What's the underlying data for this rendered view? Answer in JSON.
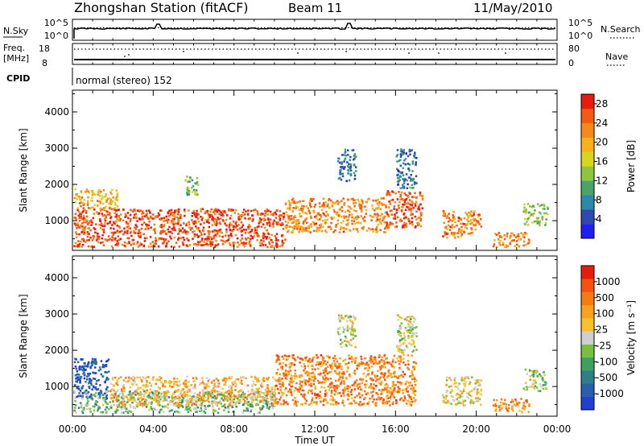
{
  "header": {
    "station": "Zhongshan Station (fitACF)",
    "beam": "Beam 11",
    "date": "11/May/2010"
  },
  "summary_panels": {
    "nsky_label": "N.Sky",
    "nsearch_label": "N.Search",
    "freq_label_1": "Freq.",
    "freq_label_2": "[MHz]",
    "nave_label": "Nave",
    "cpid_label": "CPID",
    "cpid_value": "normal (stereo) 152",
    "nsky_ticks": [
      "10^5",
      "10^0"
    ],
    "nsearch_ticks": [
      "10^5",
      "10^0"
    ],
    "freq_ticks": [
      "18",
      "8"
    ],
    "nave_ticks": [
      "80",
      "0"
    ]
  },
  "colors": {
    "power_scale": [
      "#1f1ff5",
      "#2f49b0",
      "#2c8aa8",
      "#4aa36a",
      "#8cc63f",
      "#d9d41c",
      "#f7b21a",
      "#f58a18",
      "#f55a12",
      "#e81b0c"
    ],
    "velocity_scale": [
      "#e81b0c",
      "#f5520f",
      "#f77a14",
      "#f7a21c",
      "#f7c22a",
      "#cfcfcf",
      "#77c040",
      "#3ea060",
      "#2f7f8a",
      "#2a5fb0",
      "#2240d0"
    ]
  },
  "chart_data": [
    {
      "type": "heatmap",
      "panel": "power",
      "xlabel": "Time UT",
      "ylabel": "Slant Range [km]",
      "x_ticks": [
        "00:00",
        "04:00",
        "08:00",
        "12:00",
        "16:00",
        "20:00",
        "00:00"
      ],
      "xlim_hours": [
        0,
        24
      ],
      "ylim": [
        180,
        4600
      ],
      "y_ticks": [
        1000,
        2000,
        3000,
        4000
      ],
      "colorbar": {
        "label": "Power [dB]",
        "ticks": [
          4,
          8,
          12,
          16,
          20,
          24,
          28
        ],
        "range": [
          0,
          30
        ]
      },
      "regions": [
        {
          "t": [
            0.0,
            10.5
          ],
          "r": [
            300,
            1350
          ],
          "level": 0.92
        },
        {
          "t": [
            10.5,
            15.5
          ],
          "r": [
            700,
            1650
          ],
          "level": 0.78
        },
        {
          "t": [
            15.5,
            17.3
          ],
          "r": [
            800,
            1850
          ],
          "level": 0.9
        },
        {
          "t": [
            18.3,
            20.2
          ],
          "r": [
            550,
            1300
          ],
          "level": 0.82
        },
        {
          "t": [
            20.8,
            22.6
          ],
          "r": [
            300,
            700
          ],
          "level": 0.78
        },
        {
          "t": [
            0.0,
            2.2
          ],
          "r": [
            1350,
            1900
          ],
          "level": 0.7
        },
        {
          "t": [
            22.3,
            23.5
          ],
          "r": [
            900,
            1500
          ],
          "level": 0.45
        },
        {
          "t": [
            13.1,
            14.0
          ],
          "r": [
            2100,
            3000
          ],
          "level": 0.22
        },
        {
          "t": [
            16.0,
            17.0
          ],
          "r": [
            1900,
            3000
          ],
          "level": 0.22
        },
        {
          "t": [
            5.5,
            6.2
          ],
          "r": [
            1700,
            2300
          ],
          "level": 0.4
        }
      ]
    },
    {
      "type": "heatmap",
      "panel": "velocity",
      "xlabel": "Time UT",
      "ylabel": "Slant Range [km]",
      "x_ticks": [
        "00:00",
        "04:00",
        "08:00",
        "12:00",
        "16:00",
        "20:00",
        "00:00"
      ],
      "xlim_hours": [
        0,
        24
      ],
      "ylim": [
        180,
        4600
      ],
      "y_ticks": [
        1000,
        2000,
        3000,
        4000
      ],
      "colorbar": {
        "label": "Velocity [m s⁻¹]",
        "ticks": [
          "1000",
          "500",
          "100",
          "25",
          "-25",
          "-100",
          "-500",
          "-1000"
        ]
      },
      "regions": [
        {
          "t": [
            0.0,
            1.8
          ],
          "r": [
            700,
            1800
          ],
          "level": 0.95
        },
        {
          "t": [
            0.0,
            10.0
          ],
          "r": [
            300,
            900
          ],
          "level": 0.62
        },
        {
          "t": [
            1.8,
            10.0
          ],
          "r": [
            500,
            1300
          ],
          "level": 0.35
        },
        {
          "t": [
            10.0,
            17.0
          ],
          "r": [
            500,
            1900
          ],
          "level": 0.22
        },
        {
          "t": [
            18.3,
            20.2
          ],
          "r": [
            500,
            1300
          ],
          "level": 0.45
        },
        {
          "t": [
            20.8,
            22.6
          ],
          "r": [
            300,
            700
          ],
          "level": 0.25
        },
        {
          "t": [
            22.3,
            23.5
          ],
          "r": [
            900,
            1500
          ],
          "level": 0.55
        },
        {
          "t": [
            13.1,
            14.0
          ],
          "r": [
            2100,
            3000
          ],
          "level": 0.5
        },
        {
          "t": [
            16.0,
            17.0
          ],
          "r": [
            1900,
            3000
          ],
          "level": 0.5
        }
      ]
    }
  ]
}
